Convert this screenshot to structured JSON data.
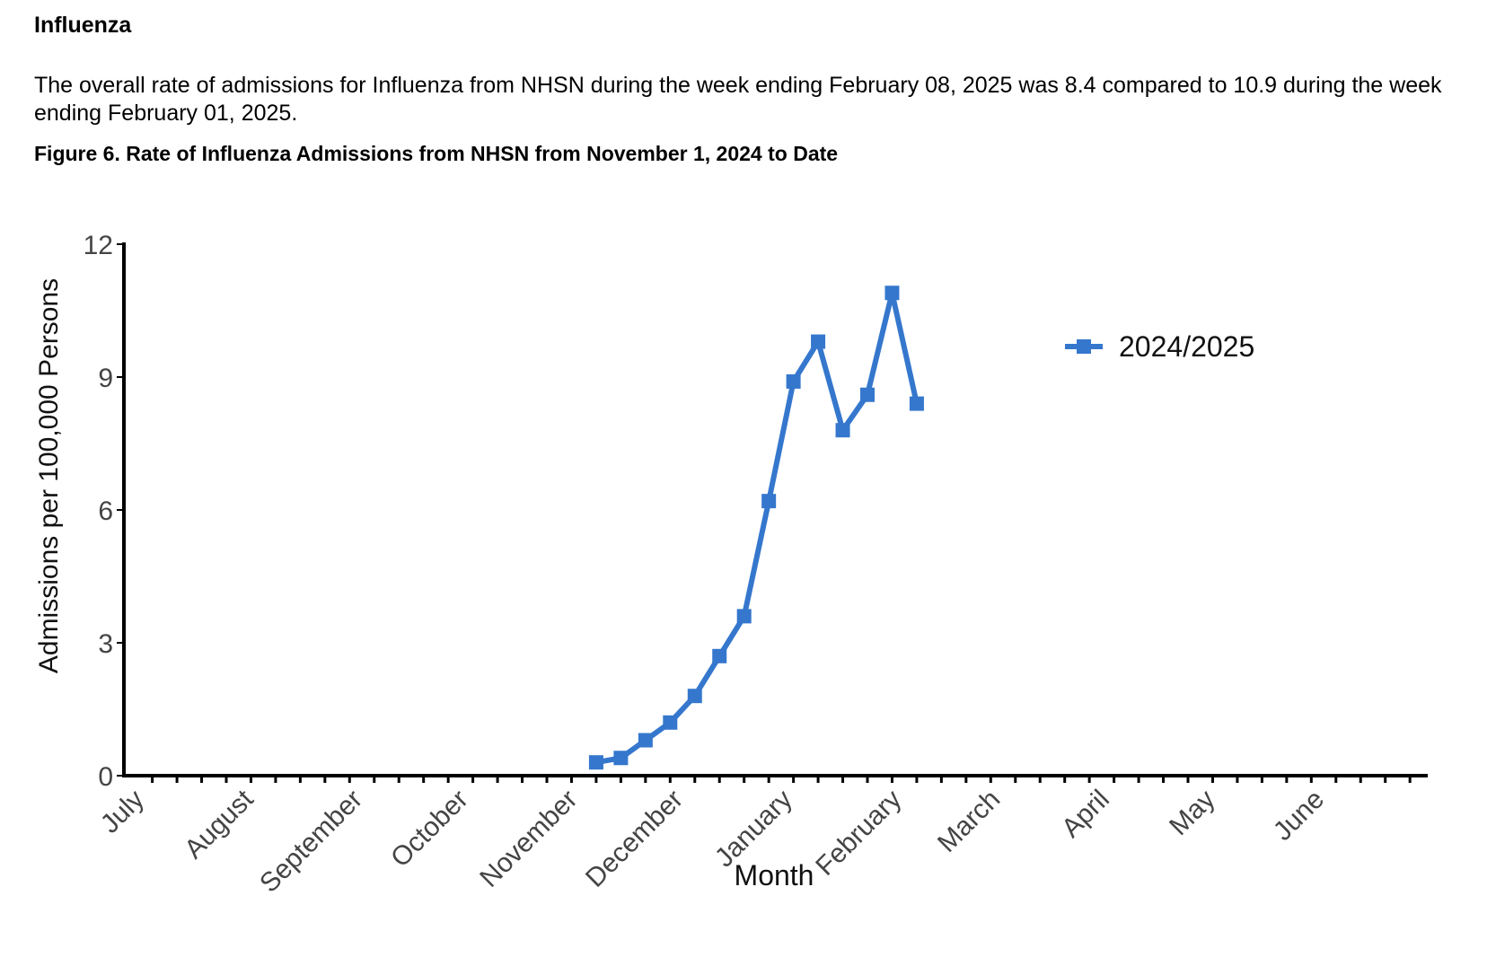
{
  "section": {
    "heading": "Influenza",
    "paragraph": "The overall rate of admissions for Influenza from NHSN during the week ending February 08, 2025 was 8.4 compared to 10.9 during the week ending February 01, 2025.",
    "figure_title": "Figure 6. Rate of Influenza Admissions from NHSN from November 1, 2024 to Date"
  },
  "chart_data": {
    "type": "line",
    "title": "Figure 6. Rate of Influenza Admissions from NHSN from November 1, 2024 to Date",
    "xlabel": "Month",
    "ylabel": "Admissions per 100,000 Persons",
    "ylim": [
      0,
      12
    ],
    "yticks": [
      0,
      3,
      6,
      9,
      12
    ],
    "month_labels": [
      "July",
      "August",
      "September",
      "October",
      "November",
      "December",
      "January",
      "February",
      "March",
      "April",
      "May",
      "June"
    ],
    "grid": false,
    "legend_position": "top-right",
    "series": [
      {
        "name": "2024/2025",
        "color": "#3577cd",
        "points": [
          {
            "week_ending": "2024-11-09",
            "y": 0.3
          },
          {
            "week_ending": "2024-11-16",
            "y": 0.4
          },
          {
            "week_ending": "2024-11-23",
            "y": 0.8
          },
          {
            "week_ending": "2024-11-30",
            "y": 1.2
          },
          {
            "week_ending": "2024-12-07",
            "y": 1.8
          },
          {
            "week_ending": "2024-12-14",
            "y": 2.7
          },
          {
            "week_ending": "2024-12-21",
            "y": 3.6
          },
          {
            "week_ending": "2024-12-28",
            "y": 6.2
          },
          {
            "week_ending": "2025-01-04",
            "y": 8.9
          },
          {
            "week_ending": "2025-01-11",
            "y": 9.8
          },
          {
            "week_ending": "2025-01-18",
            "y": 7.8
          },
          {
            "week_ending": "2025-01-25",
            "y": 8.6
          },
          {
            "week_ending": "2025-02-01",
            "y": 10.9
          },
          {
            "week_ending": "2025-02-08",
            "y": 8.4
          }
        ]
      }
    ]
  }
}
